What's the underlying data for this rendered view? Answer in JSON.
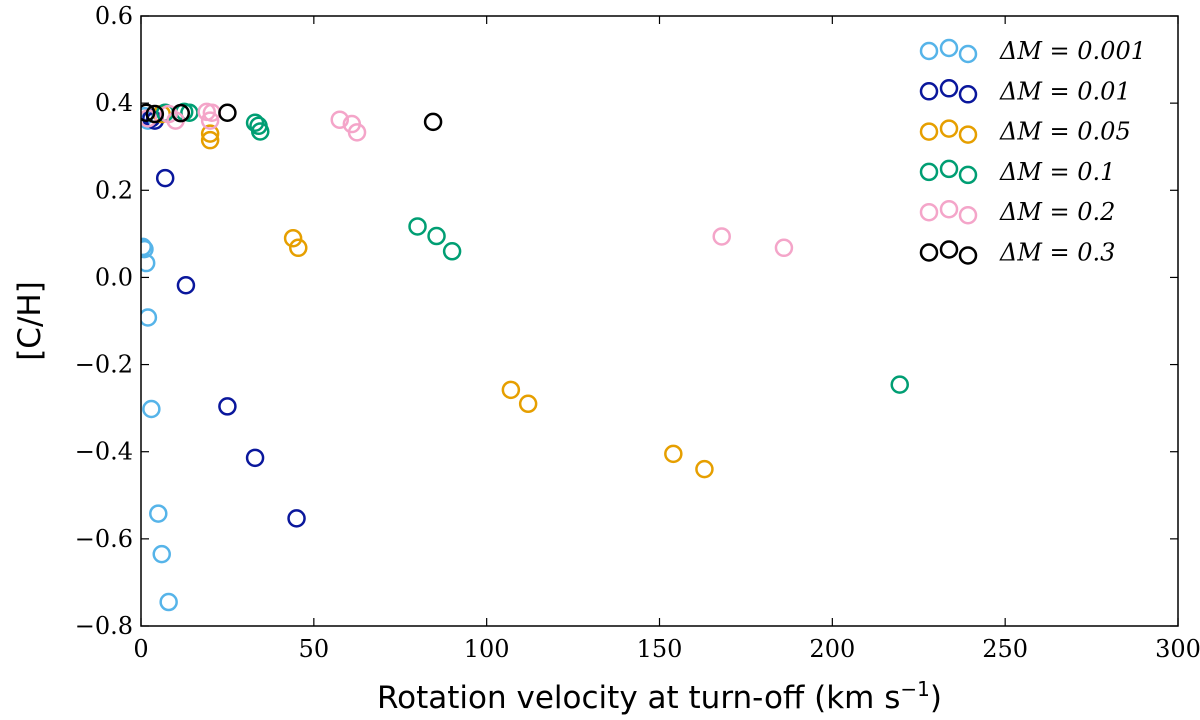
{
  "chart_data": {
    "type": "scatter",
    "title": "",
    "xlabel_main": "Rotation velocity at turn-off (km s",
    "xlabel_sup": "−1",
    "xlabel_close": ")",
    "ylabel": "[C/H]",
    "xlim": [
      0,
      300
    ],
    "ylim": [
      -0.8,
      0.6
    ],
    "x_ticks": [
      0,
      50,
      100,
      150,
      200,
      250,
      300
    ],
    "x_tick_labels": [
      "0",
      "50",
      "100",
      "150",
      "200",
      "250",
      "300"
    ],
    "y_ticks": [
      -0.8,
      -0.6,
      -0.4,
      -0.2,
      0.0,
      0.2,
      0.4,
      0.6
    ],
    "y_tick_labels": [
      "−0.8",
      "−0.6",
      "−0.4",
      "−0.2",
      "0.0",
      "0.2",
      "0.4",
      "0.6"
    ],
    "grid": false,
    "legend_position": "top-right",
    "series": [
      {
        "name": "ΔM = 0.001",
        "color": "#56b4e9",
        "points": [
          [
            0.5,
            0.07
          ],
          [
            1.0,
            0.065
          ],
          [
            1.5,
            0.033
          ],
          [
            2.0,
            -0.092
          ],
          [
            3.0,
            -0.302
          ],
          [
            5.0,
            -0.542
          ],
          [
            6.0,
            -0.635
          ],
          [
            8.0,
            -0.745
          ],
          [
            1.0,
            0.37
          ],
          [
            2.0,
            0.36
          ]
        ]
      },
      {
        "name": "ΔM = 0.01",
        "color": "#0a179c",
        "points": [
          [
            7.0,
            0.228
          ],
          [
            13.0,
            -0.018
          ],
          [
            25.0,
            -0.296
          ],
          [
            33.0,
            -0.414
          ],
          [
            45.0,
            -0.553
          ],
          [
            3.0,
            0.365
          ],
          [
            4.0,
            0.36
          ]
        ]
      },
      {
        "name": "ΔM = 0.05",
        "color": "#e69f00",
        "points": [
          [
            44.0,
            0.09
          ],
          [
            45.5,
            0.068
          ],
          [
            107.0,
            -0.258
          ],
          [
            112.0,
            -0.29
          ],
          [
            154.0,
            -0.405
          ],
          [
            163.0,
            -0.44
          ],
          [
            20.0,
            0.33
          ],
          [
            20.0,
            0.315
          ],
          [
            6.0,
            0.375
          ]
        ]
      },
      {
        "name": "ΔM = 0.1",
        "color": "#009e73",
        "points": [
          [
            80.0,
            0.117
          ],
          [
            85.5,
            0.095
          ],
          [
            90.0,
            0.06
          ],
          [
            219.5,
            -0.246
          ],
          [
            33.0,
            0.355
          ],
          [
            34.0,
            0.348
          ],
          [
            34.5,
            0.335
          ],
          [
            12.5,
            0.38
          ],
          [
            14.0,
            0.378
          ],
          [
            7.0,
            0.378
          ]
        ]
      },
      {
        "name": "ΔM = 0.2",
        "color": "#f4a5c9",
        "points": [
          [
            168.0,
            0.094
          ],
          [
            186.0,
            0.068
          ],
          [
            57.5,
            0.362
          ],
          [
            61.0,
            0.352
          ],
          [
            62.5,
            0.333
          ],
          [
            19.0,
            0.38
          ],
          [
            20.5,
            0.378
          ],
          [
            20.0,
            0.36
          ],
          [
            8.0,
            0.375
          ],
          [
            10.0,
            0.36
          ],
          [
            2.0,
            0.365
          ]
        ]
      },
      {
        "name": "ΔM = 0.3",
        "color": "#000000",
        "points": [
          [
            84.5,
            0.357
          ],
          [
            25.0,
            0.378
          ],
          [
            11.5,
            0.377
          ],
          [
            4.0,
            0.375
          ],
          [
            1.5,
            0.378
          ]
        ]
      }
    ]
  }
}
